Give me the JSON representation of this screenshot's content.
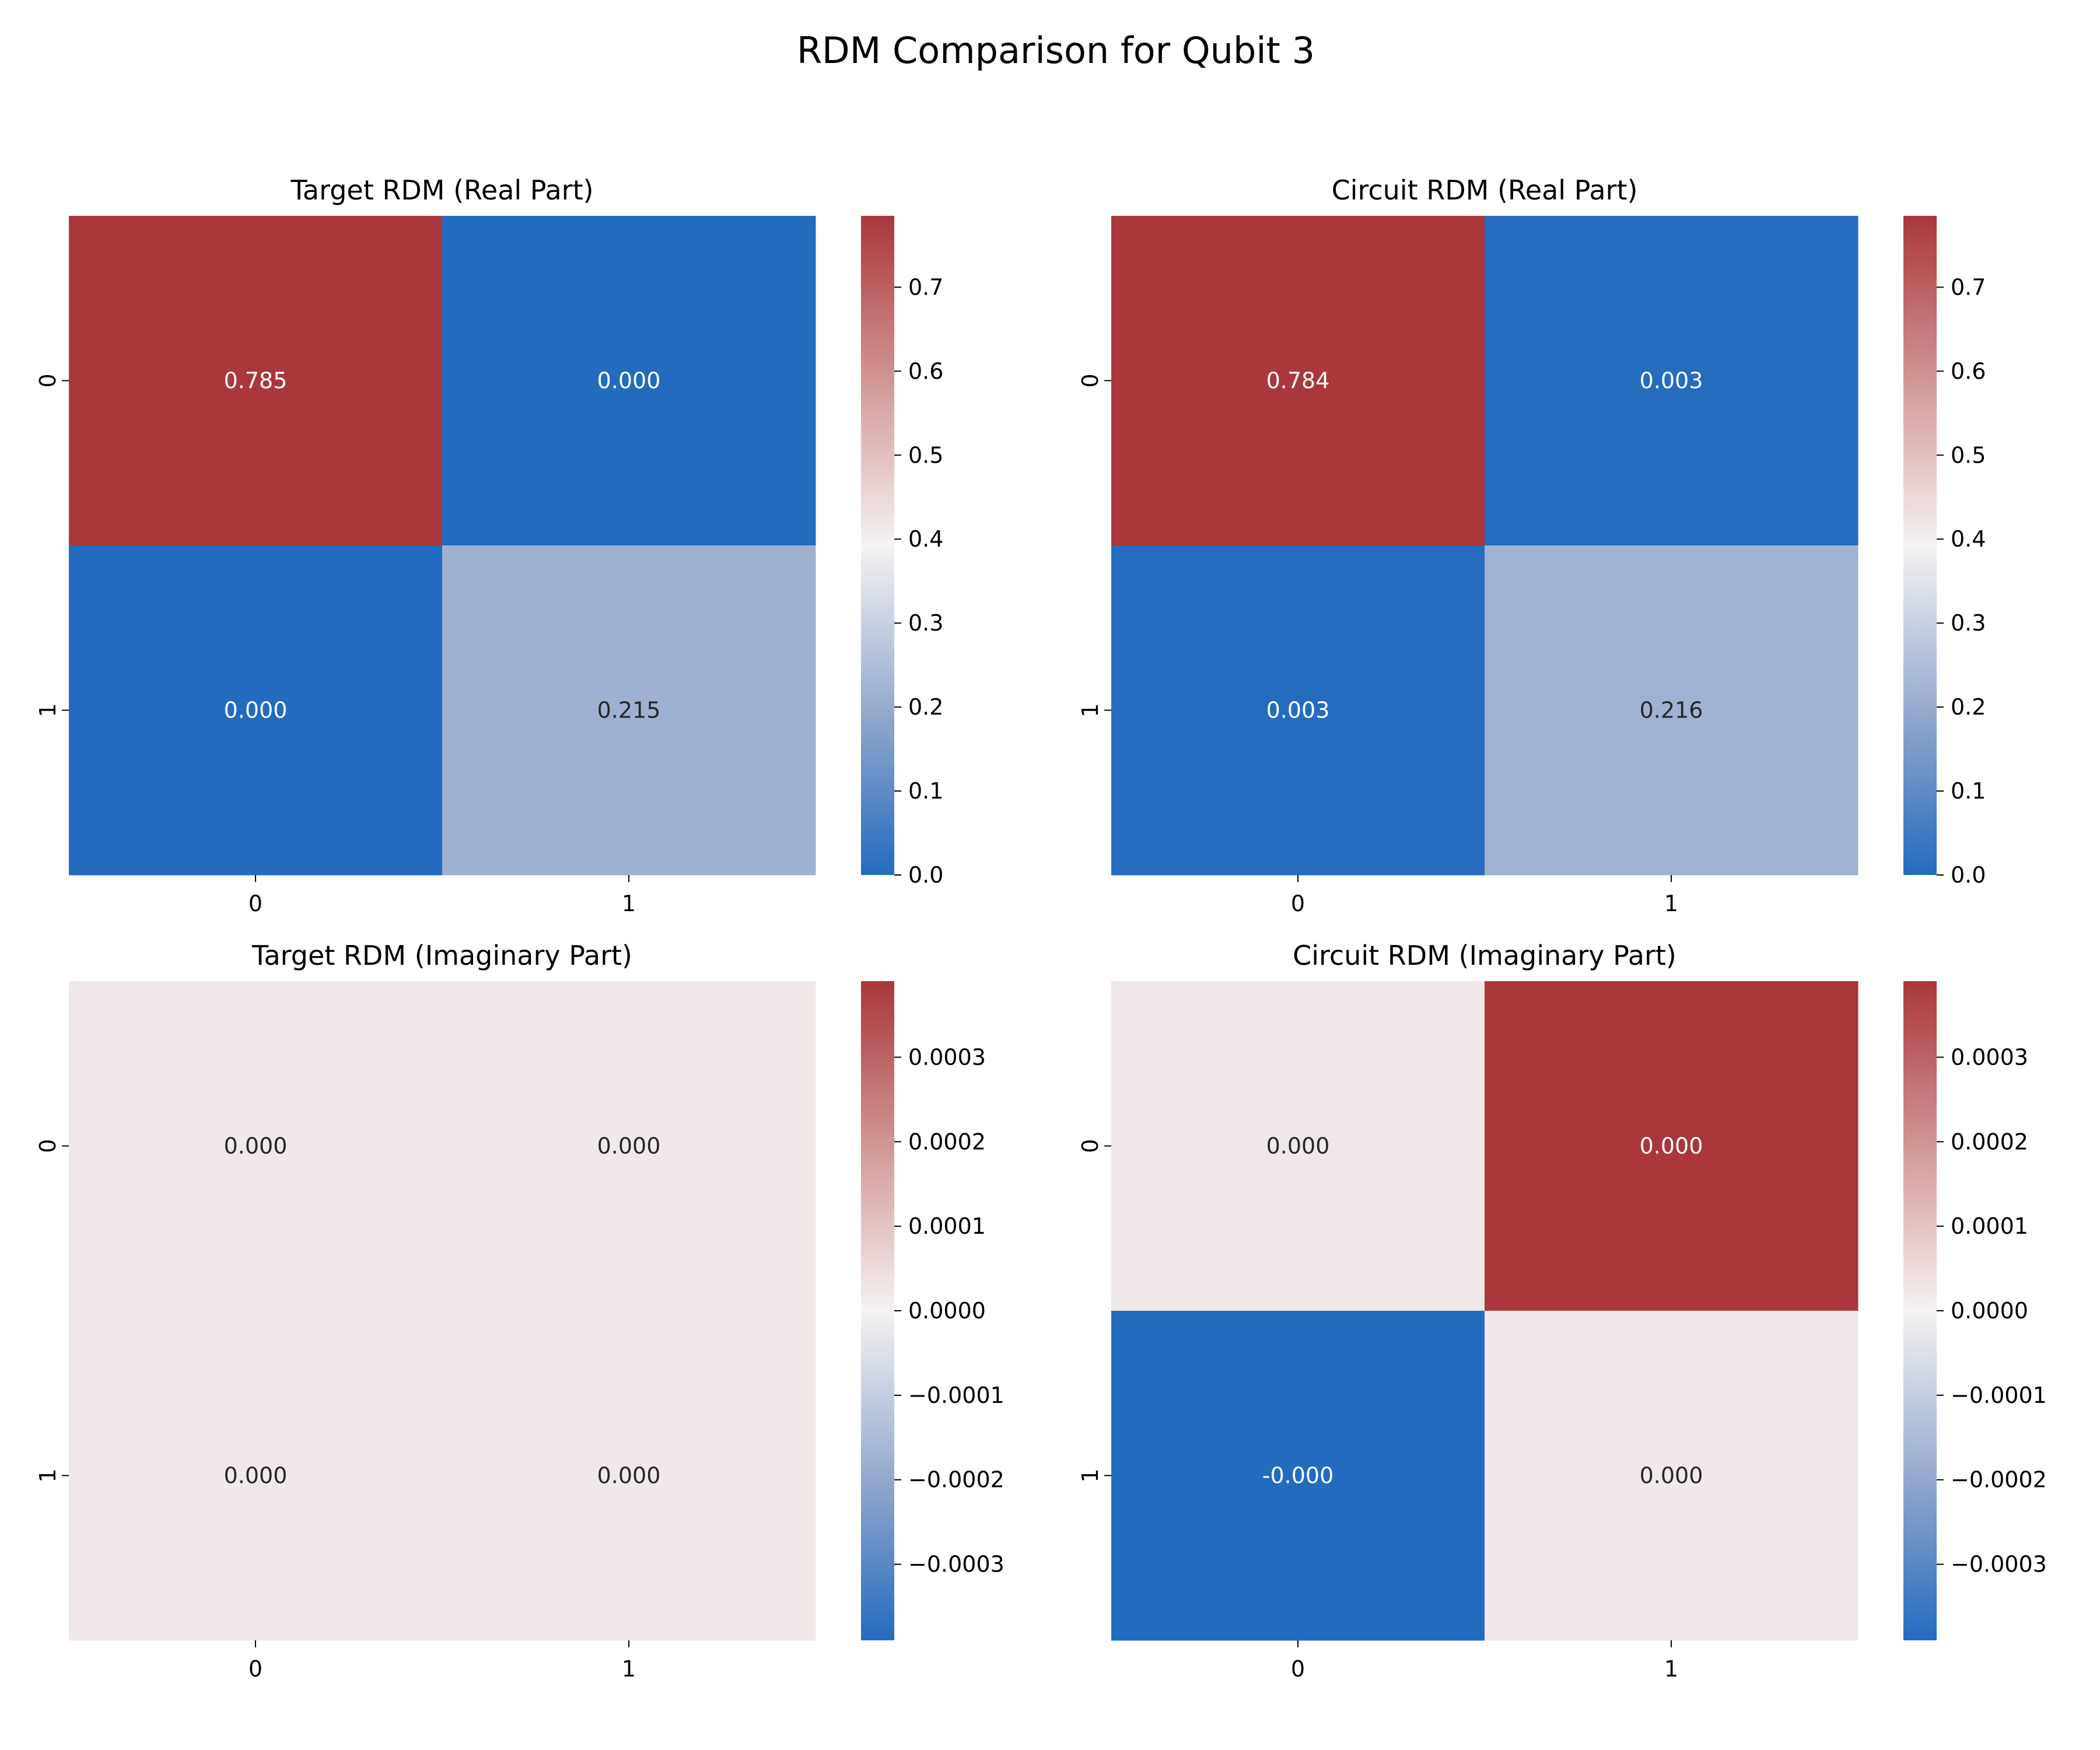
{
  "chart_data": {
    "type": "heatmap",
    "title": "RDM Comparison for Qubit 3",
    "colormap": "vlag",
    "panels": [
      {
        "title": "Target RDM (Real Part)",
        "rows": [
          "0",
          "1"
        ],
        "cols": [
          "0",
          "1"
        ],
        "values": [
          [
            0.785,
            0.0
          ],
          [
            0.0,
            0.215
          ]
        ],
        "annotations": [
          [
            "0.785",
            "0.000"
          ],
          [
            "0.000",
            "0.215"
          ]
        ],
        "vmin": 0.0,
        "vmax": 0.785,
        "colorbar_ticks": [
          "0.0",
          "0.1",
          "0.2",
          "0.3",
          "0.4",
          "0.5",
          "0.6",
          "0.7"
        ],
        "colorbar_tick_values": [
          0.0,
          0.1,
          0.2,
          0.3,
          0.4,
          0.5,
          0.6,
          0.7
        ]
      },
      {
        "title": "Circuit RDM (Real Part)",
        "rows": [
          "0",
          "1"
        ],
        "cols": [
          "0",
          "1"
        ],
        "values": [
          [
            0.784,
            0.003
          ],
          [
            0.003,
            0.216
          ]
        ],
        "annotations": [
          [
            "0.784",
            "0.003"
          ],
          [
            "0.003",
            "0.216"
          ]
        ],
        "vmin": 0.0,
        "vmax": 0.785,
        "colorbar_ticks": [
          "0.0",
          "0.1",
          "0.2",
          "0.3",
          "0.4",
          "0.5",
          "0.6",
          "0.7"
        ],
        "colorbar_tick_values": [
          0.0,
          0.1,
          0.2,
          0.3,
          0.4,
          0.5,
          0.6,
          0.7
        ]
      },
      {
        "title": "Target RDM (Imaginary Part)",
        "rows": [
          "0",
          "1"
        ],
        "cols": [
          "0",
          "1"
        ],
        "values": [
          [
            2e-05,
            2e-05
          ],
          [
            2e-05,
            2e-05
          ]
        ],
        "annotations": [
          [
            "0.000",
            "0.000"
          ],
          [
            "0.000",
            "0.000"
          ]
        ],
        "vmin": -0.00039,
        "vmax": 0.00039,
        "colorbar_ticks": [
          "−0.0003",
          "−0.0002",
          "−0.0001",
          "0.0000",
          "0.0001",
          "0.0002",
          "0.0003"
        ],
        "colorbar_tick_values": [
          -0.0003,
          -0.0002,
          -0.0001,
          0.0,
          0.0001,
          0.0002,
          0.0003
        ]
      },
      {
        "title": "Circuit RDM (Imaginary Part)",
        "rows": [
          "0",
          "1"
        ],
        "cols": [
          "0",
          "1"
        ],
        "values": [
          [
            2e-05,
            0.00039
          ],
          [
            -0.00039,
            2e-05
          ]
        ],
        "annotations": [
          [
            "0.000",
            "0.000"
          ],
          [
            "-0.000",
            "0.000"
          ]
        ],
        "vmin": -0.00039,
        "vmax": 0.00039,
        "colorbar_ticks": [
          "−0.0003",
          "−0.0002",
          "−0.0001",
          "0.0000",
          "0.0001",
          "0.0002",
          "0.0003"
        ],
        "colorbar_tick_values": [
          -0.0003,
          -0.0002,
          -0.0001,
          0.0,
          0.0001,
          0.0002,
          0.0003
        ]
      }
    ]
  }
}
